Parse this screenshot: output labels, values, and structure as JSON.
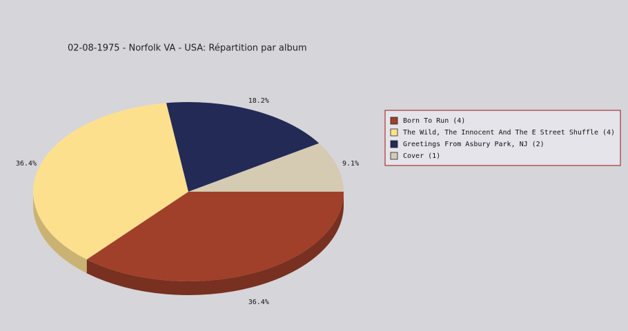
{
  "chart_data": {
    "type": "pie3d",
    "title": "02-08-1975 - Norfolk VA - USA:  Répartition par album",
    "categories": [
      "Born To Run (4)",
      "The Wild, The Innocent And The E Street Shuffle (4)",
      "Greetings From Asbury Park, NJ (2)",
      "Cover (1)"
    ],
    "values": [
      36.4,
      36.4,
      18.2,
      9.1
    ],
    "value_labels": [
      "36.4%",
      "36.4%",
      "18.2%",
      "9.1%"
    ],
    "colors": [
      "#a0402a",
      "#fde08e",
      "#222a55",
      "#d5cab2"
    ],
    "legend": "right"
  }
}
